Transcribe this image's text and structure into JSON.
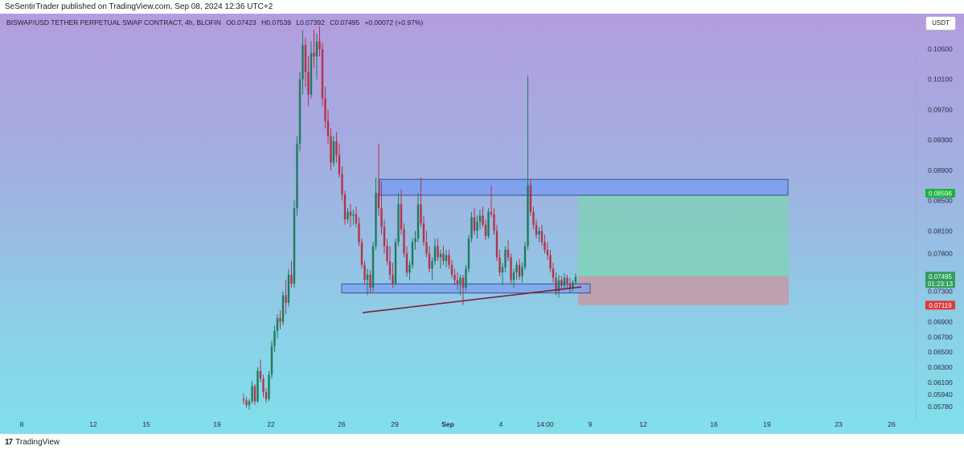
{
  "publisher_line": "SeSentirTrader published on TradingView.com, Sep 08, 2024 12:36 UTC+2",
  "header": {
    "symbol": "BISWAP/USD TETHER PERPETUAL SWAP CONTRACT, 4h, BLOFIN",
    "open": "O0.07423",
    "high": "H0.07539",
    "low": "L0.07392",
    "close": "C0.07495",
    "change": "+0.00072 (+0.97%)"
  },
  "currency_button": "USDT",
  "footer": {
    "logo_text": "TradingView"
  },
  "colors": {
    "up_candle": "#1f7a5a",
    "down_candle": "#b3324a",
    "upper_zone_fill": "#7a9ff0",
    "zone_border": "#3a4f9a",
    "target_fill": "#7fd3b4",
    "stop_fill": "#c49aa6",
    "trendline": "#7a1f3c",
    "label_current": "#2e9e5b",
    "label_target": "#18b43a",
    "label_stop": "#e03a3a",
    "label_level": "#6d6d6d"
  },
  "chart_data": {
    "type": "candlestick",
    "timeframe": "4h",
    "y_axis": {
      "scale": "linear",
      "range": [
        0.0565,
        0.108
      ],
      "ticks": [
        "0.10500",
        "0.10100",
        "0.09700",
        "0.09300",
        "0.08900",
        "0.08500",
        "0.08100",
        "0.07800",
        "0.07300",
        "0.06900",
        "0.06700",
        "0.06500",
        "0.06300",
        "0.06100",
        "0.05940",
        "0.05780"
      ]
    },
    "x_axis": {
      "ticks": [
        "8",
        "12",
        "15",
        "19",
        "22",
        "26",
        "29",
        "Sep",
        "4",
        "14:00",
        "9",
        "12",
        "16",
        "19",
        "23",
        "26"
      ],
      "bold_ticks": [
        "Sep"
      ]
    },
    "price_labels": [
      {
        "text": "0.08596",
        "role": "target"
      },
      {
        "text": "0.07500",
        "role": "level"
      },
      {
        "text": "0.07495",
        "sub": "01:23:13",
        "role": "current"
      },
      {
        "text": "0.07119",
        "role": "stop"
      }
    ],
    "zones": [
      {
        "role": "resistance",
        "top": 0.0878,
        "bottom": 0.0857
      },
      {
        "role": "support",
        "top": 0.074,
        "bottom": 0.0728
      }
    ],
    "trendline": {
      "from": {
        "x": "Aug 28",
        "y": 0.0702
      },
      "to": {
        "x": "Sep 8",
        "y": 0.0736
      }
    },
    "position": {
      "entry": 0.075,
      "target": 0.08596,
      "stop": 0.07119
    },
    "candles": [
      [
        0.0588,
        0.0595,
        0.0581,
        0.0586
      ],
      [
        0.0586,
        0.0591,
        0.0577,
        0.058
      ],
      [
        0.058,
        0.0588,
        0.0574,
        0.0585
      ],
      [
        0.0585,
        0.0612,
        0.0582,
        0.0605
      ],
      [
        0.0605,
        0.0608,
        0.058,
        0.0585
      ],
      [
        0.0585,
        0.063,
        0.0583,
        0.0625
      ],
      [
        0.0625,
        0.064,
        0.061,
        0.0615
      ],
      [
        0.0615,
        0.062,
        0.059,
        0.0597
      ],
      [
        0.0597,
        0.0602,
        0.0583,
        0.0588
      ],
      [
        0.0588,
        0.0625,
        0.0585,
        0.062
      ],
      [
        0.062,
        0.0665,
        0.0615,
        0.0658
      ],
      [
        0.0658,
        0.0685,
        0.065,
        0.0678
      ],
      [
        0.0678,
        0.07,
        0.0668,
        0.0695
      ],
      [
        0.0695,
        0.0705,
        0.068,
        0.069
      ],
      [
        0.069,
        0.073,
        0.0685,
        0.0725
      ],
      [
        0.0725,
        0.0745,
        0.07,
        0.0715
      ],
      [
        0.0715,
        0.076,
        0.071,
        0.0752
      ],
      [
        0.0752,
        0.077,
        0.0735,
        0.074
      ],
      [
        0.074,
        0.085,
        0.0735,
        0.084
      ],
      [
        0.084,
        0.0935,
        0.083,
        0.0925
      ],
      [
        0.0925,
        0.102,
        0.0915,
        0.101
      ],
      [
        0.101,
        0.1075,
        0.099,
        0.1055
      ],
      [
        0.1055,
        0.1065,
        0.1,
        0.102
      ],
      [
        0.102,
        0.104,
        0.0975,
        0.099
      ],
      [
        0.099,
        0.106,
        0.0985,
        0.1045
      ],
      [
        0.1045,
        0.1075,
        0.1025,
        0.104
      ],
      [
        0.104,
        0.107,
        0.101,
        0.106
      ],
      [
        0.106,
        0.108,
        0.104,
        0.105
      ],
      [
        0.105,
        0.1058,
        0.0975,
        0.0985
      ],
      [
        0.0985,
        0.1,
        0.0945,
        0.0955
      ],
      [
        0.0955,
        0.097,
        0.0925,
        0.0935
      ],
      [
        0.0935,
        0.0945,
        0.089,
        0.09
      ],
      [
        0.09,
        0.0935,
        0.0895,
        0.0928
      ],
      [
        0.0928,
        0.094,
        0.09,
        0.091
      ],
      [
        0.091,
        0.0925,
        0.088,
        0.0885
      ],
      [
        0.0885,
        0.0895,
        0.085,
        0.0858
      ],
      [
        0.0858,
        0.0863,
        0.0818,
        0.0825
      ],
      [
        0.0825,
        0.084,
        0.082,
        0.0835
      ],
      [
        0.0835,
        0.0845,
        0.0815,
        0.083
      ],
      [
        0.083,
        0.0838,
        0.0818,
        0.0832
      ],
      [
        0.0832,
        0.0842,
        0.0815,
        0.082
      ],
      [
        0.082,
        0.0828,
        0.079,
        0.0795
      ],
      [
        0.0795,
        0.08,
        0.076,
        0.0765
      ],
      [
        0.0765,
        0.077,
        0.074,
        0.0745
      ],
      [
        0.0745,
        0.076,
        0.0725,
        0.0752
      ],
      [
        0.0752,
        0.0758,
        0.0728,
        0.0735
      ],
      [
        0.0735,
        0.0795,
        0.073,
        0.079
      ],
      [
        0.079,
        0.088,
        0.0785,
        0.086
      ],
      [
        0.086,
        0.0925,
        0.083,
        0.084
      ],
      [
        0.084,
        0.0875,
        0.0805,
        0.0815
      ],
      [
        0.0815,
        0.0825,
        0.078,
        0.079
      ],
      [
        0.079,
        0.08,
        0.0765,
        0.077
      ],
      [
        0.077,
        0.079,
        0.0745,
        0.0752
      ],
      [
        0.0752,
        0.0768,
        0.0735,
        0.074
      ],
      [
        0.074,
        0.08,
        0.0738,
        0.0795
      ],
      [
        0.0795,
        0.086,
        0.079,
        0.0845
      ],
      [
        0.0845,
        0.0865,
        0.0805,
        0.0812
      ],
      [
        0.0812,
        0.082,
        0.0775,
        0.078
      ],
      [
        0.078,
        0.079,
        0.075,
        0.0755
      ],
      [
        0.0755,
        0.077,
        0.0745,
        0.0765
      ],
      [
        0.0765,
        0.08,
        0.076,
        0.0795
      ],
      [
        0.0795,
        0.081,
        0.0785,
        0.08
      ],
      [
        0.08,
        0.086,
        0.0795,
        0.0845
      ],
      [
        0.0845,
        0.088,
        0.0815,
        0.082
      ],
      [
        0.082,
        0.083,
        0.079,
        0.0795
      ],
      [
        0.0795,
        0.081,
        0.0775,
        0.078
      ],
      [
        0.078,
        0.079,
        0.0755,
        0.076
      ],
      [
        0.076,
        0.0775,
        0.0745,
        0.077
      ],
      [
        0.077,
        0.08,
        0.0765,
        0.079
      ],
      [
        0.079,
        0.08,
        0.077,
        0.0775
      ],
      [
        0.0775,
        0.0785,
        0.076,
        0.078
      ],
      [
        0.078,
        0.079,
        0.0765,
        0.077
      ],
      [
        0.077,
        0.0785,
        0.0762,
        0.0778
      ],
      [
        0.0778,
        0.0785,
        0.076,
        0.0765
      ],
      [
        0.0765,
        0.0772,
        0.0748,
        0.0752
      ],
      [
        0.0752,
        0.076,
        0.0738,
        0.0745
      ],
      [
        0.0745,
        0.0755,
        0.0732,
        0.074
      ],
      [
        0.074,
        0.0752,
        0.0725,
        0.0748
      ],
      [
        0.0748,
        0.0752,
        0.0712,
        0.0735
      ],
      [
        0.0735,
        0.0765,
        0.073,
        0.076
      ],
      [
        0.076,
        0.0805,
        0.0755,
        0.08
      ],
      [
        0.08,
        0.0835,
        0.0795,
        0.0828
      ],
      [
        0.0828,
        0.084,
        0.0805,
        0.081
      ],
      [
        0.081,
        0.083,
        0.08,
        0.0822
      ],
      [
        0.0822,
        0.0838,
        0.0812,
        0.083
      ],
      [
        0.083,
        0.0842,
        0.0815,
        0.0818
      ],
      [
        0.0818,
        0.0825,
        0.0798,
        0.0803
      ],
      [
        0.0803,
        0.084,
        0.08,
        0.0835
      ],
      [
        0.0835,
        0.087,
        0.0828,
        0.0832
      ],
      [
        0.0832,
        0.084,
        0.0805,
        0.081
      ],
      [
        0.081,
        0.0818,
        0.077,
        0.0775
      ],
      [
        0.0775,
        0.0785,
        0.075,
        0.0755
      ],
      [
        0.0755,
        0.0768,
        0.0738,
        0.0762
      ],
      [
        0.0762,
        0.079,
        0.0755,
        0.0785
      ],
      [
        0.0785,
        0.0798,
        0.077,
        0.0775
      ],
      [
        0.0775,
        0.078,
        0.074,
        0.0745
      ],
      [
        0.0745,
        0.076,
        0.0735,
        0.0755
      ],
      [
        0.0755,
        0.077,
        0.0745,
        0.0765
      ],
      [
        0.0765,
        0.0773,
        0.0745,
        0.075
      ],
      [
        0.075,
        0.0768,
        0.0742,
        0.0762
      ],
      [
        0.0762,
        0.0795,
        0.0758,
        0.079
      ],
      [
        0.079,
        0.1015,
        0.0785,
        0.087
      ],
      [
        0.087,
        0.0878,
        0.083,
        0.0835
      ],
      [
        0.0835,
        0.0842,
        0.0812,
        0.0818
      ],
      [
        0.0818,
        0.0825,
        0.08,
        0.0805
      ],
      [
        0.0805,
        0.0815,
        0.0795,
        0.081
      ],
      [
        0.081,
        0.0818,
        0.079,
        0.0795
      ],
      [
        0.0795,
        0.0805,
        0.078,
        0.0785
      ],
      [
        0.0785,
        0.0795,
        0.0772,
        0.0778
      ],
      [
        0.0778,
        0.0785,
        0.0755,
        0.076
      ],
      [
        0.076,
        0.0768,
        0.0742,
        0.0748
      ],
      [
        0.0748,
        0.0755,
        0.0725,
        0.073
      ],
      [
        0.073,
        0.0752,
        0.0722,
        0.0745
      ],
      [
        0.0745,
        0.075,
        0.0732,
        0.0738
      ],
      [
        0.0738,
        0.0754,
        0.0732,
        0.0748
      ],
      [
        0.0748,
        0.0752,
        0.0735,
        0.074
      ],
      [
        0.074,
        0.0748,
        0.0728,
        0.0735
      ],
      [
        0.0735,
        0.0745,
        0.073,
        0.0742
      ],
      [
        0.0742,
        0.0754,
        0.0739,
        0.0749
      ]
    ]
  }
}
